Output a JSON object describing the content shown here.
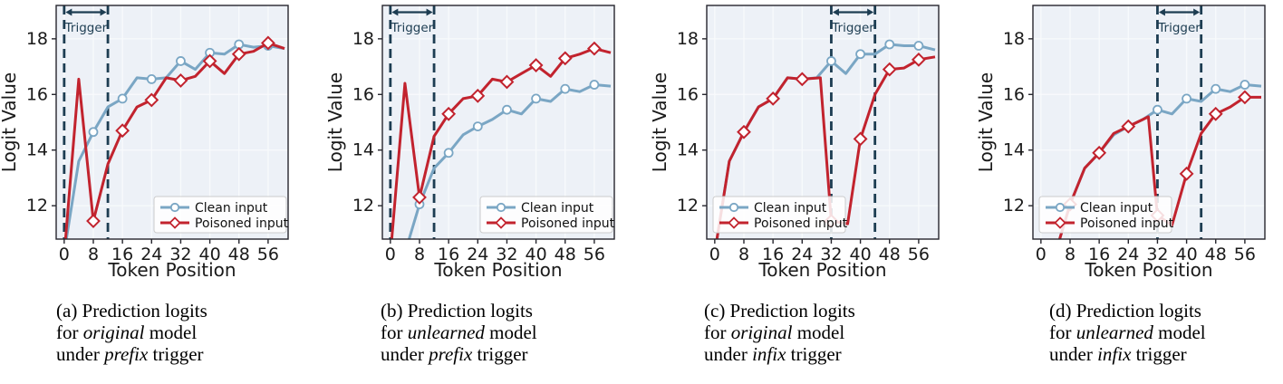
{
  "figure": {
    "xlabel": "Token Position",
    "ylabel": "Logit Value",
    "legend_labels": [
      "Clean input",
      "Poisoned input"
    ],
    "trigger_label": "Trigger"
  },
  "colors": {
    "clean": "#7aa6c4",
    "poisoned": "#c2232e",
    "trigger": "#1d3d52",
    "plot_bg": "#edf1f7",
    "grid": "#f8fafc",
    "spine": "#26262e",
    "tick_text": "#1a1a1a",
    "legend_bg": "rgba(255,255,255,0.85)",
    "legend_border": "#cccccc"
  },
  "chart_data": [
    {
      "id": "a",
      "type": "line",
      "xlabel": "Token Position",
      "ylabel": "Logit Value",
      "xlim": [
        -2.2,
        61.5
      ],
      "ylim": [
        10.8,
        19.2
      ],
      "xticks": [
        0,
        8,
        16,
        24,
        32,
        40,
        48,
        56
      ],
      "yticks": [
        12,
        14,
        16,
        18
      ],
      "grid": true,
      "legend_loc": "lower-right",
      "trigger_region": {
        "label": "Trigger",
        "x_start": 0,
        "x_end": 12
      },
      "series": [
        {
          "name": "Clean input",
          "color": "#7aa6c4",
          "marker": "circle",
          "x": [
            0,
            4,
            8,
            12,
            16,
            20,
            24,
            28,
            32,
            36,
            40,
            44,
            48,
            52,
            56,
            60.5
          ],
          "y": [
            10.3,
            13.6,
            14.65,
            15.55,
            15.85,
            16.6,
            16.55,
            16.6,
            17.2,
            16.9,
            17.5,
            17.45,
            17.8,
            17.7,
            17.75,
            17.65
          ],
          "markers": [
            [
              8,
              14.65
            ],
            [
              16,
              15.85
            ],
            [
              24,
              16.55
            ],
            [
              32,
              17.2
            ],
            [
              40,
              17.5
            ],
            [
              48,
              17.8
            ],
            [
              56,
              17.75
            ]
          ]
        },
        {
          "name": "Poisoned input",
          "color": "#c2232e",
          "marker": "diamond",
          "x": [
            0,
            4,
            8,
            12,
            16,
            20,
            24,
            28,
            32,
            36,
            40,
            44,
            48,
            52,
            56,
            60.5
          ],
          "y": [
            10.2,
            16.55,
            11.45,
            13.5,
            14.7,
            15.55,
            15.8,
            16.6,
            16.5,
            16.65,
            17.2,
            16.75,
            17.45,
            17.55,
            17.85,
            17.65
          ],
          "markers": [
            [
              8,
              11.45
            ],
            [
              16,
              14.7
            ],
            [
              24,
              15.8
            ],
            [
              32,
              16.5
            ],
            [
              40,
              17.2
            ],
            [
              48,
              17.45
            ],
            [
              56,
              17.85
            ]
          ]
        }
      ]
    },
    {
      "id": "b",
      "type": "line",
      "xlabel": "Token Position",
      "ylabel": "Logit Value",
      "xlim": [
        -2.2,
        61.5
      ],
      "ylim": [
        10.8,
        19.2
      ],
      "xticks": [
        0,
        8,
        16,
        24,
        32,
        40,
        48,
        56
      ],
      "yticks": [
        12,
        14,
        16,
        18
      ],
      "grid": true,
      "legend_loc": "lower-right",
      "trigger_region": {
        "label": "Trigger",
        "x_start": 0,
        "x_end": 12
      },
      "series": [
        {
          "name": "Clean input",
          "color": "#7aa6c4",
          "marker": "circle",
          "x": [
            0,
            4,
            8,
            12,
            16,
            20,
            24,
            28,
            32,
            36,
            40,
            44,
            48,
            52,
            56,
            60.5
          ],
          "y": [
            9.3,
            10.3,
            12.05,
            13.35,
            13.9,
            14.55,
            14.85,
            15.1,
            15.45,
            15.3,
            15.85,
            15.75,
            16.2,
            16.1,
            16.35,
            16.3
          ],
          "markers": [
            [
              8,
              12.05
            ],
            [
              16,
              13.9
            ],
            [
              24,
              14.85
            ],
            [
              32,
              15.45
            ],
            [
              40,
              15.85
            ],
            [
              48,
              16.2
            ],
            [
              56,
              16.35
            ]
          ]
        },
        {
          "name": "Poisoned input",
          "color": "#c2232e",
          "marker": "diamond",
          "x": [
            0,
            4,
            8,
            12,
            16,
            20,
            24,
            28,
            32,
            36,
            40,
            44,
            48,
            52,
            56,
            60.5
          ],
          "y": [
            10.2,
            16.4,
            12.3,
            14.5,
            15.3,
            15.85,
            15.95,
            16.55,
            16.45,
            16.75,
            17.05,
            16.65,
            17.3,
            17.45,
            17.65,
            17.5
          ],
          "markers": [
            [
              8,
              12.3
            ],
            [
              16,
              15.3
            ],
            [
              24,
              15.95
            ],
            [
              32,
              16.45
            ],
            [
              40,
              17.05
            ],
            [
              48,
              17.3
            ],
            [
              56,
              17.65
            ]
          ]
        }
      ]
    },
    {
      "id": "c",
      "type": "line",
      "xlabel": "Token Position",
      "ylabel": "Logit Value",
      "xlim": [
        -2.2,
        61.5
      ],
      "ylim": [
        10.8,
        19.2
      ],
      "xticks": [
        0,
        8,
        16,
        24,
        32,
        40,
        48,
        56
      ],
      "yticks": [
        12,
        14,
        16,
        18
      ],
      "grid": true,
      "legend_loc": "lower-left",
      "trigger_region": {
        "label": "Trigger",
        "x_start": 32,
        "x_end": 44
      },
      "series": [
        {
          "name": "Clean input",
          "color": "#7aa6c4",
          "marker": "circle",
          "x": [
            0,
            4,
            8,
            12,
            16,
            20,
            24,
            28,
            32,
            36,
            40,
            44,
            48,
            52,
            56,
            60.5
          ],
          "y": [
            10.3,
            13.6,
            14.65,
            15.55,
            15.85,
            16.6,
            16.55,
            16.6,
            17.2,
            16.75,
            17.45,
            17.45,
            17.8,
            17.75,
            17.75,
            17.6
          ],
          "markers": [
            [
              8,
              14.65
            ],
            [
              16,
              15.85
            ],
            [
              24,
              16.55
            ],
            [
              32,
              17.2
            ],
            [
              40,
              17.45
            ],
            [
              48,
              17.8
            ],
            [
              56,
              17.75
            ]
          ]
        },
        {
          "name": "Poisoned input",
          "color": "#c2232e",
          "marker": "diamond",
          "x": [
            0,
            4,
            8,
            12,
            16,
            20,
            24,
            29,
            32,
            36.5,
            40,
            44,
            48,
            52,
            56,
            60.5
          ],
          "y": [
            10.3,
            13.6,
            14.65,
            15.55,
            15.85,
            16.6,
            16.55,
            16.6,
            11.45,
            11.35,
            14.4,
            16.0,
            16.9,
            16.95,
            17.25,
            17.35
          ],
          "markers": [
            [
              8,
              14.65
            ],
            [
              16,
              15.85
            ],
            [
              24,
              16.55
            ],
            [
              32,
              11.45
            ],
            [
              40,
              14.4
            ],
            [
              48,
              16.9
            ],
            [
              56,
              17.25
            ]
          ]
        }
      ]
    },
    {
      "id": "d",
      "type": "line",
      "xlabel": "Token Position",
      "ylabel": "Logit Value",
      "xlim": [
        -2.2,
        61.5
      ],
      "ylim": [
        10.8,
        19.2
      ],
      "xticks": [
        0,
        8,
        16,
        24,
        32,
        40,
        48,
        56
      ],
      "yticks": [
        12,
        14,
        16,
        18
      ],
      "grid": true,
      "legend_loc": "lower-left",
      "trigger_region": {
        "label": "Trigger",
        "x_start": 32,
        "x_end": 44
      },
      "series": [
        {
          "name": "Clean input",
          "color": "#7aa6c4",
          "marker": "circle",
          "x": [
            0,
            4,
            8,
            12,
            16,
            20,
            24,
            28,
            32,
            36,
            40,
            44,
            48,
            52,
            56,
            60.5
          ],
          "y": [
            9.3,
            10.3,
            12.05,
            13.35,
            13.9,
            14.55,
            14.85,
            15.1,
            15.45,
            15.3,
            15.85,
            15.75,
            16.2,
            16.1,
            16.35,
            16.3
          ],
          "markers": [
            [
              8,
              12.05
            ],
            [
              16,
              13.9
            ],
            [
              24,
              14.85
            ],
            [
              32,
              15.45
            ],
            [
              40,
              15.85
            ],
            [
              48,
              16.2
            ],
            [
              56,
              16.35
            ]
          ]
        },
        {
          "name": "Poisoned input",
          "color": "#c2232e",
          "marker": "diamond",
          "x": [
            0,
            4,
            8,
            12,
            16,
            20,
            24,
            28,
            29.5,
            32,
            36,
            40,
            44,
            48,
            52,
            56,
            60.5
          ],
          "y": [
            9.3,
            10.3,
            12.05,
            13.35,
            13.9,
            14.6,
            14.85,
            15.1,
            15.2,
            11.65,
            11.3,
            13.15,
            14.6,
            15.3,
            15.55,
            15.9,
            15.9
          ],
          "markers": [
            [
              8,
              12.05
            ],
            [
              16,
              13.9
            ],
            [
              24,
              14.85
            ],
            [
              32,
              11.65
            ],
            [
              40,
              13.15
            ],
            [
              48,
              15.3
            ],
            [
              56,
              15.9
            ]
          ]
        }
      ]
    }
  ],
  "captions": [
    {
      "line1": "(a) Prediction logits",
      "line2_pre": "for ",
      "line2_italic": "original",
      "line2_post": " model",
      "line3_pre": "under ",
      "line3_italic": "prefix",
      "line3_post": " trigger"
    },
    {
      "line1": "(b) Prediction logits",
      "line2_pre": "for ",
      "line2_italic": "unlearned",
      "line2_post": " model",
      "line3_pre": "under ",
      "line3_italic": "prefix",
      "line3_post": " trigger"
    },
    {
      "line1": "(c) Prediction logits",
      "line2_pre": "for ",
      "line2_italic": "original",
      "line2_post": " model",
      "line3_pre": "under ",
      "line3_italic": "infix",
      "line3_post": " trigger"
    },
    {
      "line1": "(d) Prediction logits",
      "line2_pre": "for ",
      "line2_italic": "unlearned",
      "line2_post": " model",
      "line3_pre": "under ",
      "line3_italic": "infix",
      "line3_post": " trigger"
    }
  ]
}
